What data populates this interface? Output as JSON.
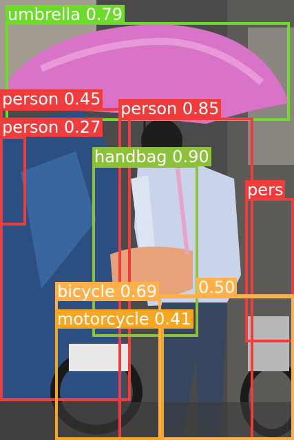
{
  "image": {
    "colors": {
      "umbrella": "#6ddb2a",
      "person": "#f03c3c",
      "handbag": "#8ec13a",
      "bicycle": "#ffb04a",
      "motorcycle": "#f5a623",
      "extra": "#ffb04a",
      "bg_left": "#2b4f80",
      "canopy": "#d873c8"
    },
    "detections": [
      {
        "label": "umbrella 0.79",
        "color": "#6ddb2a"
      },
      {
        "label": "person 0.45",
        "color": "#f03c3c"
      },
      {
        "label": "person 0.85",
        "color": "#f03c3c"
      },
      {
        "label": "person 0.27",
        "color": "#f03c3c"
      },
      {
        "label": "handbag 0.90",
        "color": "#8ec13a"
      },
      {
        "label": "pers",
        "color": "#f03c3c"
      },
      {
        "label": "bicycle 0.69",
        "color": "#ffb04a"
      },
      {
        "label": "0.50",
        "color": "#ffb04a"
      },
      {
        "label": "motorcycle 0.41",
        "color": "#f5a623"
      }
    ]
  }
}
